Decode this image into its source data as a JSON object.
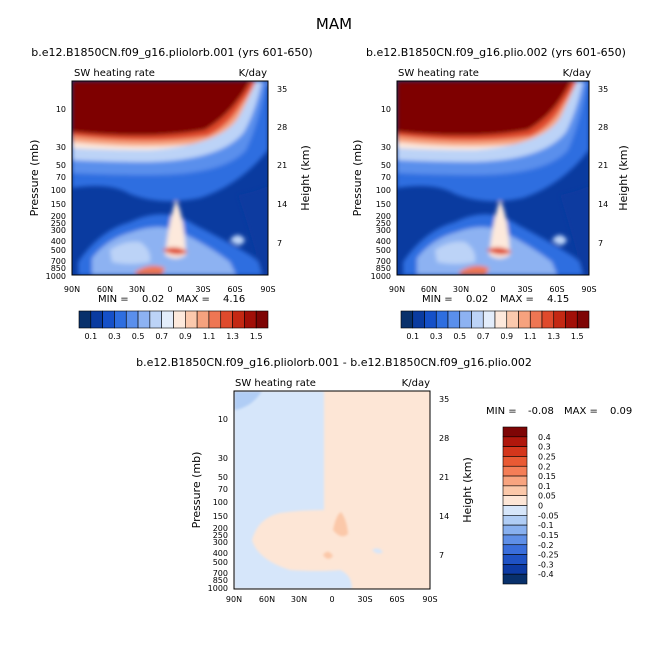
{
  "figure": {
    "title": "MAM"
  },
  "chart_data": [
    {
      "type": "heatmap",
      "title": "b.e12.B1850CN.f09_g16.pliolorb.001 (yrs 601-650)",
      "left_string": "SW heating rate",
      "right_string": "K/day",
      "ylabel": "Pressure (mb)",
      "y2label": "Height (km)",
      "x_tick_labels": [
        "90N",
        "60N",
        "30N",
        "0",
        "30S",
        "60S",
        "90S"
      ],
      "y_tick_labels": [
        "10",
        "30",
        "50",
        "70",
        "100",
        "150",
        "200",
        "250",
        "300",
        "400",
        "500",
        "700",
        "850",
        "1000"
      ],
      "y2_tick_labels": [
        "35",
        "28",
        "21",
        "14",
        "7"
      ],
      "min_label": "MIN =",
      "min_value": "0.02",
      "max_label": "MAX =",
      "max_value": "4.16",
      "xlim": [
        90,
        -90
      ],
      "ylim_mb": [
        5,
        1000
      ]
    },
    {
      "type": "heatmap",
      "title": "b.e12.B1850CN.f09_g16.plio.002 (yrs 601-650)",
      "left_string": "SW heating rate",
      "right_string": "K/day",
      "ylabel": "Pressure (mb)",
      "y2label": "Height (km)",
      "x_tick_labels": [
        "90N",
        "60N",
        "30N",
        "0",
        "30S",
        "60S",
        "90S"
      ],
      "y_tick_labels": [
        "10",
        "30",
        "50",
        "70",
        "100",
        "150",
        "200",
        "250",
        "300",
        "400",
        "500",
        "700",
        "850",
        "1000"
      ],
      "y2_tick_labels": [
        "35",
        "28",
        "21",
        "14",
        "7"
      ],
      "min_label": "MIN =",
      "min_value": "0.02",
      "max_label": "MAX =",
      "max_value": "4.15",
      "xlim": [
        90,
        -90
      ],
      "ylim_mb": [
        5,
        1000
      ]
    },
    {
      "type": "heatmap",
      "title": "b.e12.B1850CN.f09_g16.pliolorb.001 - b.e12.B1850CN.f09_g16.plio.002",
      "left_string": "SW heating rate",
      "right_string": "K/day",
      "ylabel": "Pressure (mb)",
      "y2label": "Height (km)",
      "x_tick_labels": [
        "90N",
        "60N",
        "30N",
        "0",
        "30S",
        "60S",
        "90S"
      ],
      "y_tick_labels": [
        "10",
        "30",
        "50",
        "70",
        "100",
        "150",
        "200",
        "250",
        "300",
        "400",
        "500",
        "700",
        "850",
        "1000"
      ],
      "y2_tick_labels": [
        "35",
        "28",
        "21",
        "14",
        "7"
      ],
      "min_label": "MIN =",
      "min_value": "-0.08",
      "max_label": "MAX =",
      "max_value": "0.09",
      "xlim": [
        90,
        -90
      ],
      "ylim_mb": [
        5,
        1000
      ]
    }
  ],
  "colorbar_abs": {
    "orientation": "horizontal",
    "labels": [
      "0.1",
      "0.3",
      "0.5",
      "0.7",
      "0.9",
      "1.1",
      "1.3",
      "1.5"
    ],
    "colors": [
      "#08306b",
      "#0a3ba0",
      "#1550c8",
      "#2e6ee0",
      "#5a8fec",
      "#8db2f2",
      "#bcd3f7",
      "#e3edfb",
      "#fde9dc",
      "#fbc9ad",
      "#f6a27e",
      "#ee7653",
      "#df4a2c",
      "#c42813",
      "#a20f08",
      "#7e0505"
    ]
  },
  "colorbar_diff": {
    "orientation": "vertical",
    "labels": [
      "0.4",
      "0.3",
      "0.25",
      "0.2",
      "0.15",
      "0.1",
      "0.05",
      "0",
      "-0.05",
      "-0.1",
      "-0.15",
      "-0.2",
      "-0.25",
      "-0.3",
      "-0.4"
    ],
    "colors": [
      "#7e0505",
      "#b0170c",
      "#d4361c",
      "#e95a34",
      "#f47e57",
      "#f8a47f",
      "#fbc8a9",
      "#fde6d6",
      "#d6e6fa",
      "#b0cdf5",
      "#88b0ef",
      "#5f8fe7",
      "#3a6edb",
      "#1f52c4",
      "#0d3aa3",
      "#08306b"
    ]
  }
}
